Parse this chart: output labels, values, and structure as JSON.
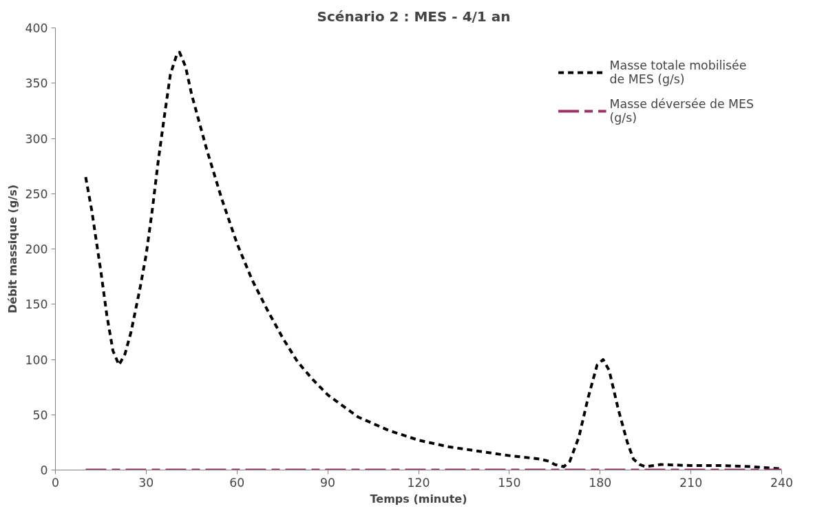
{
  "chart_data": {
    "type": "line",
    "title": "Scénario 2 : MES  -  4/1 an",
    "xlabel": "Temps (minute)",
    "ylabel": "Débit massique (g/s)",
    "xlim": [
      0,
      240
    ],
    "xticks": [
      0,
      30,
      60,
      90,
      120,
      150,
      180,
      210,
      240
    ],
    "ylim": [
      0,
      400
    ],
    "yticks": [
      0,
      50,
      100,
      150,
      200,
      250,
      300,
      350,
      400
    ],
    "grid": false,
    "legend": "top right",
    "line_style": "dashed",
    "series": [
      {
        "name": "Masse totale mobilisée de MES (g/s)",
        "color": "#000000",
        "x": [
          10,
          12,
          15,
          17,
          19,
          21,
          23,
          25,
          28,
          30,
          32,
          34,
          36,
          38,
          40,
          41,
          43,
          45,
          50,
          55,
          60,
          65,
          70,
          75,
          80,
          85,
          90,
          100,
          110,
          120,
          130,
          140,
          150,
          160,
          163,
          165,
          168,
          170,
          173,
          176,
          179,
          181,
          183,
          186,
          189,
          191,
          193,
          195,
          200,
          210,
          220,
          230,
          240
        ],
        "values": [
          265,
          235,
          180,
          140,
          108,
          95,
          105,
          125,
          165,
          195,
          235,
          280,
          320,
          358,
          375,
          378,
          365,
          340,
          290,
          245,
          205,
          172,
          145,
          120,
          98,
          82,
          68,
          48,
          36,
          27,
          21,
          17,
          13,
          10,
          8,
          5,
          3,
          8,
          30,
          65,
          95,
          100,
          90,
          55,
          25,
          10,
          5,
          3,
          5,
          4,
          4,
          3,
          1
        ]
      },
      {
        "name": "Masse déversée de MES (g/s)",
        "color": "#993366",
        "x": [
          10,
          240
        ],
        "values": [
          0,
          0
        ],
        "line_style": "dash_long"
      }
    ]
  }
}
